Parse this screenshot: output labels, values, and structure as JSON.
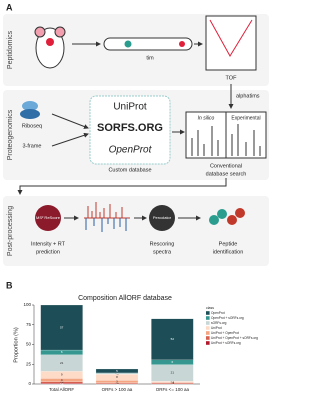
{
  "panel_a": {
    "label": "A",
    "sections": [
      "Peptidomics",
      "Proteogenomics",
      "Post-processing"
    ],
    "tim": "tim",
    "tof": "TOF",
    "alphatims": "alphatims",
    "riboseq": "Riboseq",
    "three_frame": "3-frame",
    "databases": [
      "UniProt",
      "SORFS.ORG",
      "OpenProt"
    ],
    "custom_database": "Custom database",
    "in_silico": "In silico",
    "experimental": "Experimental",
    "conventional_search": [
      "Conventional",
      "database search"
    ],
    "ms2rescore": "MS² ReScore",
    "intensity_rt": [
      "Intensity + RT",
      "prediction"
    ],
    "percolator": "Percolator",
    "rescoring": [
      "Rescoring",
      "spectra"
    ],
    "peptide_identification": [
      "Peptide",
      "identification"
    ]
  },
  "chart_data": {
    "type": "stacked_bar",
    "panel_label": "B",
    "title": "Composition AllORF database",
    "y_label": "Proportion (%)",
    "legend_title": "class",
    "categories": [
      "Total AllORF",
      "ORFs > 100 aa",
      "ORFs <= 100 aa"
    ],
    "series": [
      {
        "name": "UniProt + sORFs.org",
        "color": "#b2182b",
        "values": [
          1,
          0.5,
          0.5
        ],
        "value_labels": [
          "<3",
          "<3",
          "<3"
        ]
      },
      {
        "name": "UniProt + OpenProt + sORFs.org",
        "color": "#d6604d",
        "values": [
          2,
          1,
          1
        ],
        "value_labels": [
          "<3",
          "<3",
          "<3"
        ]
      },
      {
        "name": "UniProt + OpenProt",
        "color": "#f4a582",
        "values": [
          4,
          3,
          1
        ],
        "value_labels": [
          "4",
          "3",
          "<3"
        ]
      },
      {
        "name": "UniProt",
        "color": "#fddbc7",
        "values": [
          9,
          8,
          1
        ],
        "value_labels": [
          "9",
          "8",
          "<3"
        ]
      },
      {
        "name": "sORFs.org",
        "color": "#c9d6d6",
        "values": [
          21,
          1,
          21
        ],
        "value_labels": [
          "21",
          "<3",
          "21"
        ]
      },
      {
        "name": "OpenProt + sORFs.org",
        "color": "#35978f",
        "values": [
          6,
          0.5,
          6
        ],
        "value_labels": [
          "6",
          "<3",
          "6"
        ]
      },
      {
        "name": "OpenProt",
        "color": "#1d4e57",
        "values": [
          57,
          5,
          52
        ],
        "value_labels": [
          "57",
          "5",
          "52"
        ]
      }
    ],
    "ylim": [
      0,
      100
    ],
    "yticks": [
      0,
      25,
      50,
      75,
      100
    ]
  }
}
